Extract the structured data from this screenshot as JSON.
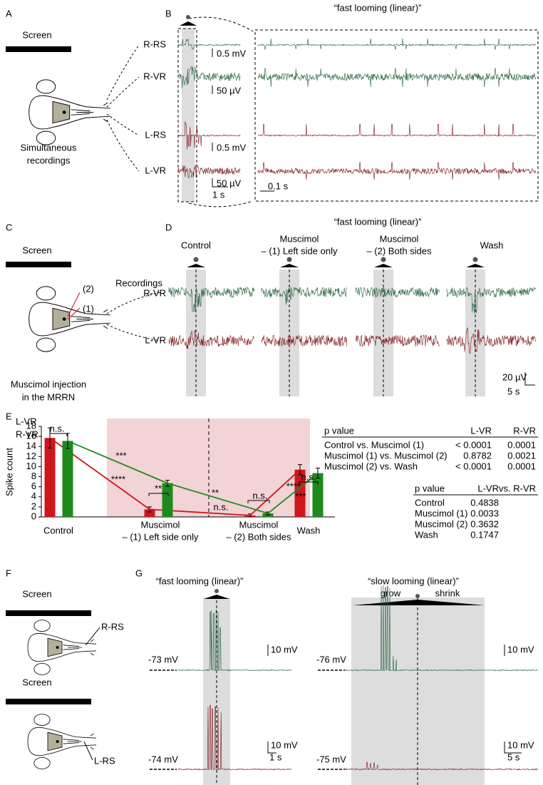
{
  "panels": {
    "A": {
      "label": "A",
      "screen": "Screen",
      "recordings": [
        "Simultaneous",
        "recordings"
      ]
    },
    "B": {
      "label": "B",
      "title": "“fast looming (linear)”",
      "traces": [
        "R-RS",
        "R-VR",
        "L-RS",
        "L-VR"
      ],
      "amplitude_scales": [
        "0.5 mV",
        "50 µV",
        "0.5 mV",
        "50 µV"
      ],
      "time_scale": "1 s",
      "zoom_time_scale": "0.1 s"
    },
    "C": {
      "label": "C",
      "screen": "Screen",
      "sites": [
        "(2)",
        "(1)"
      ],
      "injection": [
        "Muscimol injection",
        "in the MRRN"
      ]
    },
    "D": {
      "label": "D",
      "title": "“fast looming (linear)”",
      "conditions": [
        [
          "Control"
        ],
        [
          "Muscimol",
          "– (1) Left side only"
        ],
        [
          "Muscimol",
          "– (2) Both sides"
        ],
        [
          "Wash"
        ]
      ],
      "recordings": "Recordings",
      "traces": [
        "R-VR",
        "L-VR"
      ],
      "amplitude_scale": "20 µV",
      "time_scale": "5 s"
    },
    "E": {
      "label": "E",
      "tables": [
        {
          "header": [
            "p value",
            "L-VR",
            "R-VR"
          ],
          "rows": [
            [
              "Control vs. Muscimol (1)",
              "< 0.0001",
              "0.0001"
            ],
            [
              "Muscimol (1) vs. Muscimol (2)",
              "0.8782",
              "0.0021"
            ],
            [
              "Muscimol (2) vs. Wash",
              "< 0.0001",
              "0.0001"
            ]
          ]
        },
        {
          "header": [
            "p value",
            "L-VR",
            "vs. R-VR"
          ],
          "rows": [
            [
              "Control",
              "0.4838"
            ],
            [
              "Muscimol (1)",
              "0.0033"
            ],
            [
              "Muscimol (2)",
              "0.3632"
            ],
            [
              "Wash",
              "0.1747"
            ]
          ]
        }
      ]
    },
    "F": {
      "label": "F",
      "screen": "Screen",
      "traces": [
        "R-RS",
        "L-RS"
      ]
    },
    "G": {
      "label": "G",
      "titles": [
        "“fast looming (linear)”",
        "“slow looming (linear)”"
      ],
      "resting_potentials": [
        [
          "-73 mV",
          "-74 mV"
        ],
        [
          "-76 mV",
          "-75 mV"
        ]
      ],
      "amplitude_scale": "10 mV",
      "time_scales": [
        "1 s",
        "5 s"
      ],
      "phases": [
        "grow",
        "shrink"
      ]
    }
  },
  "chart_data": {
    "type": "bar",
    "ylabel": "Spike count",
    "categories": [
      [
        "Control"
      ],
      [
        "Muscimol",
        "– (1) Left side only"
      ],
      [
        "Muscimol",
        "– (2) Both sides"
      ],
      [
        "Wash"
      ]
    ],
    "category_colors": [
      "#000000",
      "#c8102e",
      "#c8102e",
      "#000000"
    ],
    "series": [
      {
        "name": "L-VR",
        "color": "#d0161d",
        "values": [
          15.7,
          1.5,
          0.3,
          9.4
        ],
        "errors": [
          2.0,
          0.5,
          0.3,
          1.0
        ]
      },
      {
        "name": "R-VR",
        "color": "#1e8a1e",
        "values": [
          15.1,
          6.7,
          0.7,
          8.7
        ],
        "errors": [
          1.5,
          0.6,
          0.3,
          1.0
        ]
      }
    ],
    "ylim": [
      0,
      18
    ],
    "yticks": [
      0,
      2,
      4,
      6,
      8,
      10,
      12,
      14,
      16,
      18
    ],
    "annotations": [
      "n.s.",
      "**",
      "n.s.",
      "n.s.",
      "***",
      "****",
      "**",
      "n.s.",
      "****",
      "***"
    ],
    "trend_lines": true
  }
}
